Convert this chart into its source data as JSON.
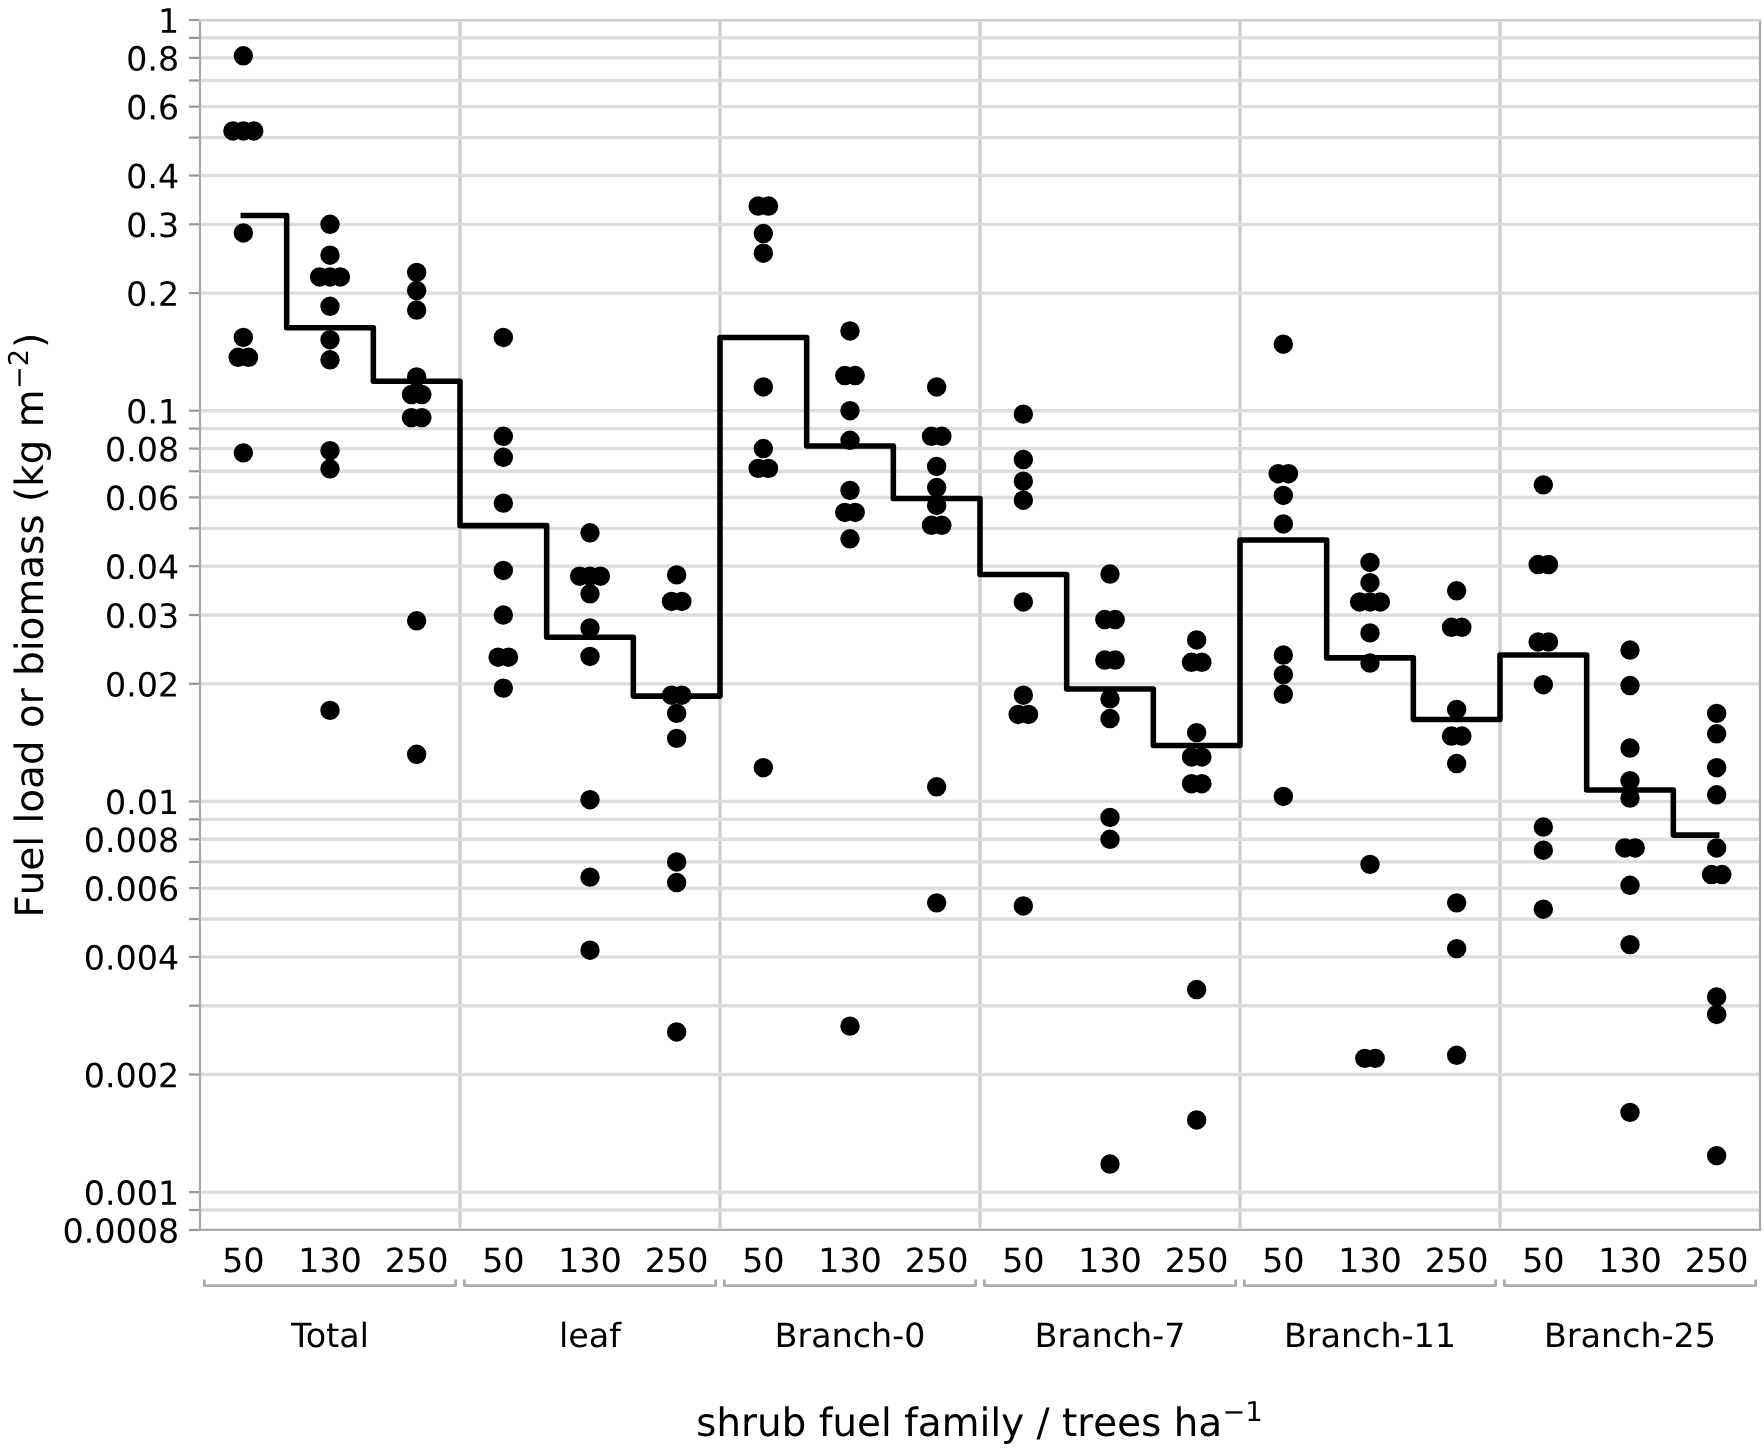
{
  "chart_data": {
    "type": "scatter",
    "xlabel": "shrub fuel family / trees ha$^{−1}$",
    "ylabel": "Fuel load or biomass (kg m$^{−2}$)",
    "categories": [
      "50",
      "130",
      "250",
      "50",
      "130",
      "250",
      "50",
      "130",
      "250",
      "50",
      "130",
      "250",
      "50",
      "130",
      "250",
      "50",
      "130",
      "250"
    ],
    "annotations": [
      "Total",
      "leaf",
      "Branch-0",
      "Branch-7",
      "Branch-11",
      "Branch-25"
    ],
    "log": "y",
    "grid": true,
    "marker": "circle",
    "ylim": [
      0.0008,
      1
    ],
    "yticks": [
      {
        "value": 0.0008,
        "label": "0.0008"
      },
      {
        "value": 0.0009,
        "label": null
      },
      {
        "value": 0.001,
        "label": "0.001"
      },
      {
        "value": 0.002,
        "label": "0.002"
      },
      {
        "value": 0.003,
        "label": null
      },
      {
        "value": 0.004,
        "label": "0.004"
      },
      {
        "value": 0.005,
        "label": null
      },
      {
        "value": 0.006,
        "label": "0.006"
      },
      {
        "value": 0.007,
        "label": null
      },
      {
        "value": 0.008,
        "label": "0.008"
      },
      {
        "value": 0.009,
        "label": null
      },
      {
        "value": 0.01,
        "label": "0.01"
      },
      {
        "value": 0.02,
        "label": "0.02"
      },
      {
        "value": 0.03,
        "label": "0.03"
      },
      {
        "value": 0.04,
        "label": "0.04"
      },
      {
        "value": 0.05,
        "label": null
      },
      {
        "value": 0.06,
        "label": "0.06"
      },
      {
        "value": 0.07,
        "label": null
      },
      {
        "value": 0.08,
        "label": "0.08"
      },
      {
        "value": 0.09,
        "label": null
      },
      {
        "value": 0.1,
        "label": "0.1"
      },
      {
        "value": 0.2,
        "label": "0.2"
      },
      {
        "value": 0.3,
        "label": "0.3"
      },
      {
        "value": 0.4,
        "label": "0.4"
      },
      {
        "value": 0.5,
        "label": null
      },
      {
        "value": 0.6,
        "label": "0.6"
      },
      {
        "value": 0.7,
        "label": null
      },
      {
        "value": 0.8,
        "label": "0.8"
      },
      {
        "value": 0.9,
        "label": null
      },
      {
        "value": 1,
        "label": "1"
      }
    ],
    "series": [
      {
        "color": "#000000",
        "values": [
          0.81,
          0.3,
          0.226,
          0.154,
          0.0487,
          0.038,
          0.334,
          0.16,
          0.115,
          0.098,
          0.0382,
          0.0259,
          0.148,
          0.0409,
          0.0346,
          0.0646,
          0.0244,
          0.0168
        ]
      },
      {
        "type": "scatter",
        "color": "#000000",
        "values": [
          0.52,
          0.25,
          0.203,
          0.086,
          0.0377,
          0.0325,
          0.334,
          0.123,
          0.086,
          0.075,
          0.0292,
          0.0227,
          0.069,
          0.0363,
          0.0279,
          0.0404,
          0.0198,
          0.0149
        ]
      },
      {
        "type": "scatter",
        "color": "#000000",
        "values": [
          0.52,
          0.22,
          0.181,
          0.076,
          0.0377,
          0.0325,
          0.284,
          0.123,
          0.086,
          0.066,
          0.0292,
          0.0227,
          0.069,
          0.0324,
          0.0279,
          0.0404,
          0.0137,
          0.0122
        ]
      },
      {
        "type": "scatter",
        "color": "#000000",
        "values": [
          0.52,
          0.22,
          0.122,
          0.058,
          0.0377,
          0.0187,
          0.253,
          0.1,
          0.072,
          0.059,
          0.023,
          0.015,
          0.0607,
          0.0324,
          0.0172,
          0.0256,
          0.0113,
          0.0104
        ]
      },
      {
        "type": "scatter",
        "color": "#000000",
        "values": [
          0.285,
          0.22,
          0.11,
          0.039,
          0.034,
          0.0187,
          0.115,
          0.084,
          0.0636,
          0.0324,
          0.023,
          0.013,
          0.0513,
          0.0324,
          0.0147,
          0.0256,
          0.0102,
          0.0076
        ]
      },
      {
        "type": "scatter",
        "color": "#000000",
        "values": [
          0.154,
          0.185,
          0.11,
          0.03,
          0.0278,
          0.0168,
          0.08,
          0.0625,
          0.0572,
          0.0187,
          0.0183,
          0.013,
          0.0237,
          0.027,
          0.0147,
          0.0199,
          0.0076,
          0.0065
        ]
      },
      {
        "type": "scatter",
        "color": "#000000",
        "values": [
          0.137,
          0.152,
          0.096,
          0.0234,
          0.0235,
          0.0145,
          0.0712,
          0.0549,
          0.0509,
          0.0167,
          0.0163,
          0.0111,
          0.0211,
          0.0226,
          0.0125,
          0.0086,
          0.0076,
          0.0065
        ]
      },
      {
        "type": "scatter",
        "color": "#000000",
        "values": [
          0.137,
          0.135,
          0.096,
          0.0234,
          0.0101,
          0.007,
          0.0712,
          0.0549,
          0.0509,
          0.0167,
          0.0091,
          0.0111,
          0.0188,
          0.0069,
          0.0055,
          0.0075,
          0.0061,
          0.00316
        ]
      },
      {
        "type": "scatter",
        "color": "#000000",
        "values": [
          0.078,
          0.079,
          0.029,
          0.0195,
          0.0064,
          0.0062,
          0.0122,
          0.047,
          0.0109,
          0.0054,
          0.008,
          0.0033,
          0.0103,
          0.0022,
          0.0042,
          0.0053,
          0.0043,
          0.00285
        ]
      },
      {
        "type": "scatter",
        "color": "#000000",
        "values": [
          null,
          0.071,
          0.0132,
          null,
          0.00416,
          0.00257,
          null,
          0.00266,
          0.0055,
          null,
          0.00118,
          0.00153,
          null,
          0.0022,
          0.00224,
          null,
          0.0016,
          0.00124
        ]
      },
      {
        "type": "scatter",
        "color": "#000000",
        "values": [
          null,
          0.0171,
          null,
          null,
          null,
          null,
          null,
          null,
          null,
          null,
          null,
          null,
          null,
          null,
          null,
          null,
          null,
          null
        ]
      },
      {
        "type": "step",
        "marker": "none",
        "color": "#000000",
        "values": [
          0.316,
          0.163,
          0.119,
          0.0508,
          0.0263,
          0.0186,
          0.154,
          0.0812,
          0.0596,
          0.0381,
          0.0194,
          0.0139,
          0.0467,
          0.0233,
          0.0162,
          0.0237,
          0.0107,
          0.0082
        ]
      }
    ]
  }
}
